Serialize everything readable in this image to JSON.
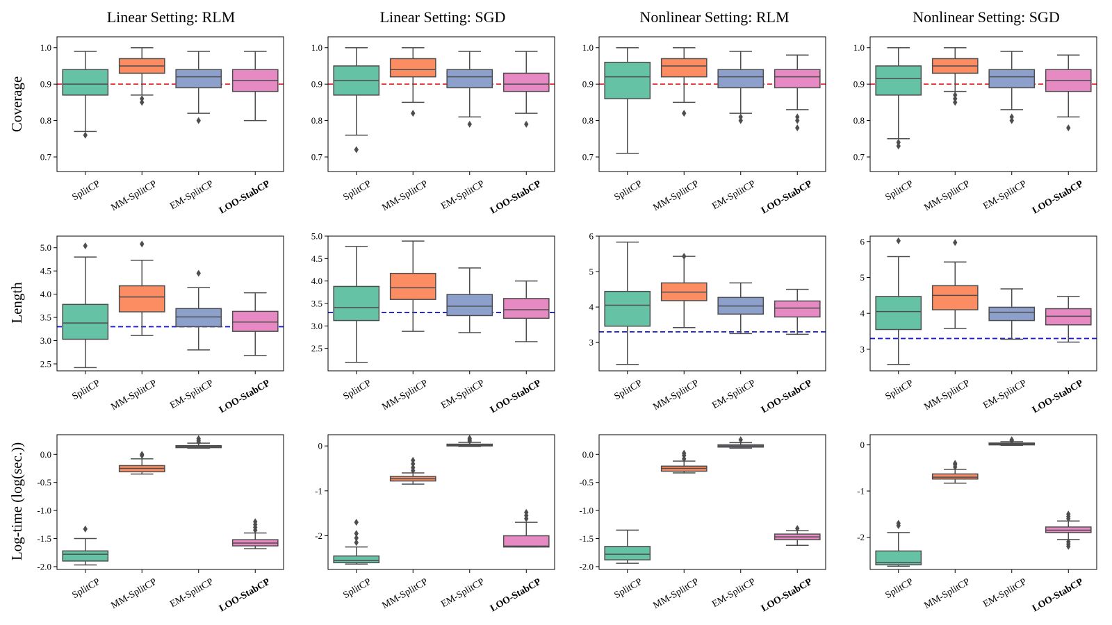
{
  "colors": {
    "SplitCP": "#66c2a5",
    "MM-SplitCP": "#fc8d62",
    "EM-SplitCP": "#8da0cb",
    "LOO-StabCP": "#e78ac3",
    "box_edge": "#4d4d4d",
    "ref_coverage": "#e8272c",
    "ref_length": "#1a1ad6"
  },
  "figure": {
    "column_titles": [
      "Linear Setting: RLM",
      "Linear Setting: SGD",
      "Nonlinear Setting: RLM",
      "Nonlinear Setting: SGD"
    ],
    "row_labels": [
      "Coverage",
      "Length",
      "Log-time (log(sec.))"
    ],
    "methods": [
      "SplitCP",
      "MM-SplitCP",
      "EM-SplitCP",
      "LOO-StabCP"
    ],
    "highlight_method": "LOO-StabCP"
  },
  "chart_data": [
    {
      "type": "box",
      "row": "Coverage",
      "setting": "Linear Setting: RLM",
      "ylim": [
        0.66,
        1.03
      ],
      "yticks": [
        0.7,
        0.8,
        0.9,
        1.0
      ],
      "ytick_labels": [
        "0.7",
        "0.8",
        "0.9",
        "1.0"
      ],
      "reference_line": 0.9,
      "reference_color": "red",
      "boxes": [
        {
          "method": "SplitCP",
          "whislo": 0.77,
          "q1": 0.87,
          "med": 0.9,
          "q3": 0.94,
          "whishi": 0.99,
          "fliers": [
            0.76
          ]
        },
        {
          "method": "MM-SplitCP",
          "whislo": 0.87,
          "q1": 0.93,
          "med": 0.95,
          "q3": 0.97,
          "whishi": 1.0,
          "fliers": [
            0.86,
            0.85
          ]
        },
        {
          "method": "EM-SplitCP",
          "whislo": 0.82,
          "q1": 0.89,
          "med": 0.92,
          "q3": 0.94,
          "whishi": 0.99,
          "fliers": [
            0.8
          ]
        },
        {
          "method": "LOO-StabCP",
          "whislo": 0.8,
          "q1": 0.88,
          "med": 0.91,
          "q3": 0.94,
          "whishi": 0.99,
          "fliers": []
        }
      ]
    },
    {
      "type": "box",
      "row": "Coverage",
      "setting": "Linear Setting: SGD",
      "ylim": [
        0.66,
        1.03
      ],
      "yticks": [
        0.7,
        0.8,
        0.9,
        1.0
      ],
      "ytick_labels": [
        "0.7",
        "0.8",
        "0.9",
        "1.0"
      ],
      "reference_line": 0.9,
      "reference_color": "red",
      "boxes": [
        {
          "method": "SplitCP",
          "whislo": 0.76,
          "q1": 0.87,
          "med": 0.91,
          "q3": 0.95,
          "whishi": 1.0,
          "fliers": [
            0.72
          ]
        },
        {
          "method": "MM-SplitCP",
          "whislo": 0.85,
          "q1": 0.92,
          "med": 0.94,
          "q3": 0.97,
          "whishi": 1.0,
          "fliers": [
            0.82
          ]
        },
        {
          "method": "EM-SplitCP",
          "whislo": 0.81,
          "q1": 0.89,
          "med": 0.92,
          "q3": 0.94,
          "whishi": 0.99,
          "fliers": [
            0.79
          ]
        },
        {
          "method": "LOO-StabCP",
          "whislo": 0.82,
          "q1": 0.88,
          "med": 0.9,
          "q3": 0.93,
          "whishi": 0.99,
          "fliers": [
            0.79
          ]
        }
      ]
    },
    {
      "type": "box",
      "row": "Coverage",
      "setting": "Nonlinear Setting: RLM",
      "ylim": [
        0.66,
        1.03
      ],
      "yticks": [
        0.7,
        0.8,
        0.9,
        1.0
      ],
      "ytick_labels": [
        "0.7",
        "0.8",
        "0.9",
        "1.0"
      ],
      "reference_line": 0.9,
      "reference_color": "red",
      "boxes": [
        {
          "method": "SplitCP",
          "whislo": 0.71,
          "q1": 0.86,
          "med": 0.92,
          "q3": 0.96,
          "whishi": 1.0,
          "fliers": []
        },
        {
          "method": "MM-SplitCP",
          "whislo": 0.85,
          "q1": 0.92,
          "med": 0.95,
          "q3": 0.97,
          "whishi": 1.0,
          "fliers": [
            0.82
          ]
        },
        {
          "method": "EM-SplitCP",
          "whislo": 0.82,
          "q1": 0.89,
          "med": 0.92,
          "q3": 0.94,
          "whishi": 0.99,
          "fliers": [
            0.81,
            0.8
          ]
        },
        {
          "method": "LOO-StabCP",
          "whislo": 0.83,
          "q1": 0.89,
          "med": 0.92,
          "q3": 0.94,
          "whishi": 0.98,
          "fliers": [
            0.81,
            0.8,
            0.78
          ]
        }
      ]
    },
    {
      "type": "box",
      "row": "Coverage",
      "setting": "Nonlinear Setting: SGD",
      "ylim": [
        0.66,
        1.03
      ],
      "yticks": [
        0.7,
        0.8,
        0.9,
        1.0
      ],
      "ytick_labels": [
        "0.7",
        "0.8",
        "0.9",
        "1.0"
      ],
      "reference_line": 0.9,
      "reference_color": "red",
      "boxes": [
        {
          "method": "SplitCP",
          "whislo": 0.75,
          "q1": 0.87,
          "med": 0.915,
          "q3": 0.95,
          "whishi": 1.0,
          "fliers": [
            0.74,
            0.73
          ]
        },
        {
          "method": "MM-SplitCP",
          "whislo": 0.88,
          "q1": 0.93,
          "med": 0.95,
          "q3": 0.97,
          "whishi": 1.0,
          "fliers": [
            0.87,
            0.86,
            0.85
          ]
        },
        {
          "method": "EM-SplitCP",
          "whislo": 0.83,
          "q1": 0.89,
          "med": 0.92,
          "q3": 0.94,
          "whishi": 0.99,
          "fliers": [
            0.81,
            0.8
          ]
        },
        {
          "method": "LOO-StabCP",
          "whislo": 0.81,
          "q1": 0.88,
          "med": 0.91,
          "q3": 0.94,
          "whishi": 0.98,
          "fliers": [
            0.78
          ]
        }
      ]
    },
    {
      "type": "box",
      "row": "Length",
      "setting": "Linear Setting: RLM",
      "ylim": [
        2.35,
        5.25
      ],
      "yticks": [
        2.5,
        3.0,
        3.5,
        4.0,
        4.5,
        5.0
      ],
      "ytick_labels": [
        "2.5",
        "3.0",
        "3.5",
        "4.0",
        "4.5",
        "5.0"
      ],
      "reference_line": 3.3,
      "reference_color": "blue",
      "boxes": [
        {
          "method": "SplitCP",
          "whislo": 2.42,
          "q1": 3.03,
          "med": 3.38,
          "q3": 3.78,
          "whishi": 4.8,
          "fliers": [
            5.04
          ]
        },
        {
          "method": "MM-SplitCP",
          "whislo": 3.11,
          "q1": 3.62,
          "med": 3.94,
          "q3": 4.18,
          "whishi": 4.73,
          "fliers": [
            5.08
          ]
        },
        {
          "method": "EM-SplitCP",
          "whislo": 2.8,
          "q1": 3.3,
          "med": 3.51,
          "q3": 3.69,
          "whishi": 4.14,
          "fliers": [
            4.45
          ]
        },
        {
          "method": "LOO-StabCP",
          "whislo": 2.68,
          "q1": 3.2,
          "med": 3.4,
          "q3": 3.63,
          "whishi": 4.03,
          "fliers": []
        }
      ]
    },
    {
      "type": "box",
      "row": "Length",
      "setting": "Linear Setting: SGD",
      "ylim": [
        2.0,
        5.0
      ],
      "yticks": [
        2.5,
        3.0,
        3.5,
        4.0,
        4.5,
        5.0
      ],
      "ytick_labels": [
        "2.5",
        "3.0",
        "3.5",
        "4.0",
        "4.5",
        "5.0"
      ],
      "reference_line": 3.3,
      "reference_color": "blue",
      "boxes": [
        {
          "method": "SplitCP",
          "whislo": 2.19,
          "q1": 3.12,
          "med": 3.41,
          "q3": 3.88,
          "whishi": 4.77,
          "fliers": []
        },
        {
          "method": "MM-SplitCP",
          "whislo": 2.88,
          "q1": 3.59,
          "med": 3.85,
          "q3": 4.17,
          "whishi": 4.89,
          "fliers": []
        },
        {
          "method": "EM-SplitCP",
          "whislo": 2.85,
          "q1": 3.23,
          "med": 3.44,
          "q3": 3.7,
          "whishi": 4.29,
          "fliers": []
        },
        {
          "method": "LOO-StabCP",
          "whislo": 2.65,
          "q1": 3.17,
          "med": 3.36,
          "q3": 3.61,
          "whishi": 4.0,
          "fliers": []
        }
      ]
    },
    {
      "type": "box",
      "row": "Length",
      "setting": "Nonlinear Setting: RLM",
      "ylim": [
        2.2,
        6.0
      ],
      "yticks": [
        3,
        4,
        5,
        6
      ],
      "ytick_labels": [
        "3",
        "4",
        "5",
        "6"
      ],
      "reference_line": 3.3,
      "reference_color": "blue",
      "boxes": [
        {
          "method": "SplitCP",
          "whislo": 2.38,
          "q1": 3.46,
          "med": 4.05,
          "q3": 4.44,
          "whishi": 5.83,
          "fliers": []
        },
        {
          "method": "MM-SplitCP",
          "whislo": 3.42,
          "q1": 4.18,
          "med": 4.42,
          "q3": 4.68,
          "whishi": 5.43,
          "fliers": [
            5.43
          ]
        },
        {
          "method": "EM-SplitCP",
          "whislo": 3.25,
          "q1": 3.8,
          "med": 4.03,
          "q3": 4.27,
          "whishi": 4.68,
          "fliers": []
        },
        {
          "method": "LOO-StabCP",
          "whislo": 3.23,
          "q1": 3.72,
          "med": 3.97,
          "q3": 4.17,
          "whishi": 4.5,
          "fliers": []
        }
      ]
    },
    {
      "type": "box",
      "row": "Length",
      "setting": "Nonlinear Setting: SGD",
      "ylim": [
        2.4,
        6.15
      ],
      "yticks": [
        3,
        4,
        5,
        6
      ],
      "ytick_labels": [
        "3",
        "4",
        "5",
        "6"
      ],
      "reference_line": 3.3,
      "reference_color": "blue",
      "boxes": [
        {
          "method": "SplitCP",
          "whislo": 2.58,
          "q1": 3.55,
          "med": 4.05,
          "q3": 4.47,
          "whishi": 5.58,
          "fliers": [
            6.02
          ]
        },
        {
          "method": "MM-SplitCP",
          "whislo": 3.58,
          "q1": 4.1,
          "med": 4.5,
          "q3": 4.77,
          "whishi": 5.43,
          "fliers": [
            5.97
          ]
        },
        {
          "method": "EM-SplitCP",
          "whislo": 3.28,
          "q1": 3.8,
          "med": 4.03,
          "q3": 4.17,
          "whishi": 4.68,
          "fliers": []
        },
        {
          "method": "LOO-StabCP",
          "whislo": 3.2,
          "q1": 3.68,
          "med": 3.92,
          "q3": 4.13,
          "whishi": 4.47,
          "fliers": []
        }
      ]
    },
    {
      "type": "box",
      "row": "Log-time (log(sec.))",
      "setting": "Linear Setting: RLM",
      "ylim": [
        -2.05,
        0.35
      ],
      "yticks": [
        -2.0,
        -1.5,
        -1.0,
        -0.5,
        0.0
      ],
      "ytick_labels": [
        "-2.0",
        "-1.5",
        "-1.0",
        "-0.5",
        "0.0"
      ],
      "reference_line": null,
      "boxes": [
        {
          "method": "SplitCP",
          "whislo": -1.97,
          "q1": -1.9,
          "med": -1.78,
          "q3": -1.72,
          "whishi": -1.5,
          "fliers": [
            -1.33
          ]
        },
        {
          "method": "MM-SplitCP",
          "whislo": -0.35,
          "q1": -0.31,
          "med": -0.25,
          "q3": -0.2,
          "whishi": -0.08,
          "fliers": [
            0.0,
            -0.02
          ]
        },
        {
          "method": "EM-SplitCP",
          "whislo": 0.11,
          "q1": 0.12,
          "med": 0.14,
          "q3": 0.155,
          "whishi": 0.2,
          "fliers": [
            0.22,
            0.25,
            0.28
          ]
        },
        {
          "method": "LOO-StabCP",
          "whislo": -1.68,
          "q1": -1.63,
          "med": -1.58,
          "q3": -1.52,
          "whishi": -1.4,
          "fliers": [
            -1.35,
            -1.3,
            -1.25,
            -1.2
          ]
        }
      ]
    },
    {
      "type": "box",
      "row": "Log-time (log(sec.))",
      "setting": "Linear Setting: SGD",
      "ylim": [
        -2.75,
        0.25
      ],
      "yticks": [
        -2,
        -1,
        0
      ],
      "ytick_labels": [
        "-2",
        "-1",
        "0"
      ],
      "reference_line": null,
      "boxes": [
        {
          "method": "SplitCP",
          "whislo": -2.63,
          "q1": -2.6,
          "med": -2.55,
          "q3": -2.45,
          "whishi": -2.25,
          "fliers": [
            -2.15,
            -2.05,
            -1.95,
            -1.7
          ]
        },
        {
          "method": "MM-SplitCP",
          "whislo": -0.85,
          "q1": -0.78,
          "med": -0.73,
          "q3": -0.68,
          "whishi": -0.6,
          "fliers": [
            -0.55,
            -0.48,
            -0.4,
            -0.32
          ]
        },
        {
          "method": "EM-SplitCP",
          "whislo": -0.01,
          "q1": 0.0,
          "med": 0.02,
          "q3": 0.04,
          "whishi": 0.08,
          "fliers": [
            0.11,
            0.14,
            0.17
          ]
        },
        {
          "method": "LOO-StabCP",
          "whislo": -2.25,
          "q1": -2.25,
          "med": -2.23,
          "q3": -2.0,
          "whishi": -1.7,
          "fliers": [
            -1.62,
            -1.55,
            -1.48
          ]
        }
      ]
    },
    {
      "type": "box",
      "row": "Log-time (log(sec.))",
      "setting": "Nonlinear Setting: RLM",
      "ylim": [
        -2.05,
        0.35
      ],
      "yticks": [
        -2.0,
        -1.5,
        -1.0,
        -0.5,
        0.0
      ],
      "ytick_labels": [
        "-2.0",
        "-1.5",
        "-1.0",
        "-0.5",
        "0.0"
      ],
      "reference_line": null,
      "boxes": [
        {
          "method": "SplitCP",
          "whislo": -1.94,
          "q1": -1.88,
          "med": -1.78,
          "q3": -1.64,
          "whishi": -1.35,
          "fliers": []
        },
        {
          "method": "MM-SplitCP",
          "whislo": -0.33,
          "q1": -0.3,
          "med": -0.25,
          "q3": -0.21,
          "whishi": -0.12,
          "fliers": [
            -0.08,
            -0.02,
            0.02
          ]
        },
        {
          "method": "EM-SplitCP",
          "whislo": 0.11,
          "q1": 0.13,
          "med": 0.15,
          "q3": 0.17,
          "whishi": 0.21,
          "fliers": [
            0.26
          ]
        },
        {
          "method": "LOO-StabCP",
          "whislo": -1.62,
          "q1": -1.52,
          "med": -1.47,
          "q3": -1.42,
          "whishi": -1.36,
          "fliers": [
            -1.32
          ]
        }
      ]
    },
    {
      "type": "box",
      "row": "Log-time (log(sec.))",
      "setting": "Nonlinear Setting: SGD",
      "ylim": [
        -2.7,
        0.22
      ],
      "yticks": [
        -2,
        -1,
        0
      ],
      "ytick_labels": [
        "-2",
        "-1",
        "0"
      ],
      "reference_line": null,
      "boxes": [
        {
          "method": "SplitCP",
          "whislo": -2.63,
          "q1": -2.6,
          "med": -2.55,
          "q3": -2.3,
          "whishi": -1.9,
          "fliers": [
            -1.75,
            -1.7
          ]
        },
        {
          "method": "MM-SplitCP",
          "whislo": -0.83,
          "q1": -0.74,
          "med": -0.7,
          "q3": -0.63,
          "whishi": -0.53,
          "fliers": [
            -0.48,
            -0.43,
            -0.4
          ]
        },
        {
          "method": "EM-SplitCP",
          "whislo": -0.01,
          "q1": 0.0,
          "med": 0.02,
          "q3": 0.04,
          "whishi": 0.07,
          "fliers": [
            0.09,
            0.11
          ]
        },
        {
          "method": "LOO-StabCP",
          "whislo": -2.05,
          "q1": -1.9,
          "med": -1.85,
          "q3": -1.78,
          "whishi": -1.65,
          "fliers": [
            -1.6,
            -1.55,
            -1.5,
            -2.1,
            -2.15,
            -2.2
          ]
        }
      ]
    }
  ]
}
